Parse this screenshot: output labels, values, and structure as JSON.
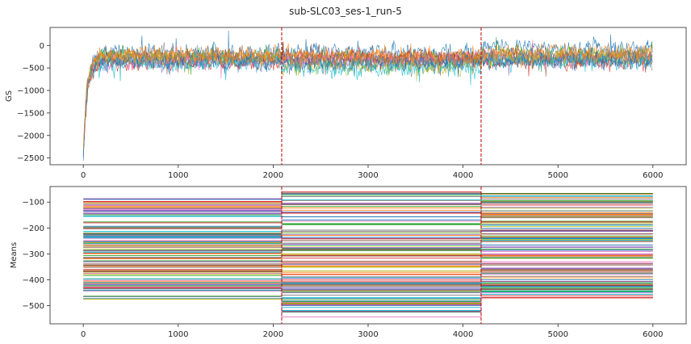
{
  "figure_title": "sub-SLC03_ses-1_run-5",
  "colors": [
    "#1f77b4",
    "#ff7f0e",
    "#2ca02c",
    "#d62728",
    "#9467bd",
    "#8c564b",
    "#e377c2",
    "#7f7f7f",
    "#bcbd22",
    "#17becf"
  ],
  "chart_data": [
    {
      "id": "gs",
      "type": "line",
      "title": "",
      "xlabel": "",
      "ylabel": "GS",
      "xlim": [
        -350,
        6350
      ],
      "ylim": [
        -2650,
        400
      ],
      "xticks": [
        0,
        1000,
        2000,
        3000,
        4000,
        5000,
        6000
      ],
      "yticks": [
        0,
        -500,
        -1000,
        -1500,
        -2000,
        -2500
      ],
      "vlines": [
        2090,
        4190
      ],
      "vline_color": "#c00000",
      "n_series": 12,
      "n_points": 6000,
      "initial_value": -2450,
      "recovery_tau": 40,
      "segment_means": [
        [
          -150,
          -160,
          -60
        ],
        [
          -200,
          -230,
          -280
        ],
        [
          -260,
          -300,
          -200
        ],
        [
          -380,
          -300,
          -360
        ],
        [
          -330,
          -350,
          -300
        ],
        [
          -300,
          -280,
          -320
        ],
        [
          -350,
          -320,
          -260
        ],
        [
          -220,
          -420,
          -240
        ],
        [
          -280,
          -450,
          -300
        ],
        [
          -400,
          -500,
          -360
        ],
        [
          -360,
          -380,
          -330
        ],
        [
          -240,
          -260,
          -150
        ]
      ],
      "noise_amplitude": 180
    },
    {
      "id": "means",
      "type": "line",
      "title": "",
      "xlabel": "",
      "ylabel": "Means",
      "xlim": [
        -350,
        6350
      ],
      "ylim": [
        -570,
        -40
      ],
      "xticks": [
        0,
        1000,
        2000,
        3000,
        4000,
        5000,
        6000
      ],
      "yticks": [
        -100,
        -200,
        -300,
        -400,
        -500
      ],
      "vlines": [
        2090,
        4190
      ],
      "vline_color": "#c00000",
      "segments": [
        [
          0,
          2090
        ],
        [
          2090,
          4190
        ],
        [
          4190,
          6000
        ]
      ],
      "n_series": 120,
      "segment_ranges": [
        [
          -480,
          -85
        ],
        [
          -545,
          -58
        ],
        [
          -470,
          -62
        ]
      ]
    }
  ]
}
